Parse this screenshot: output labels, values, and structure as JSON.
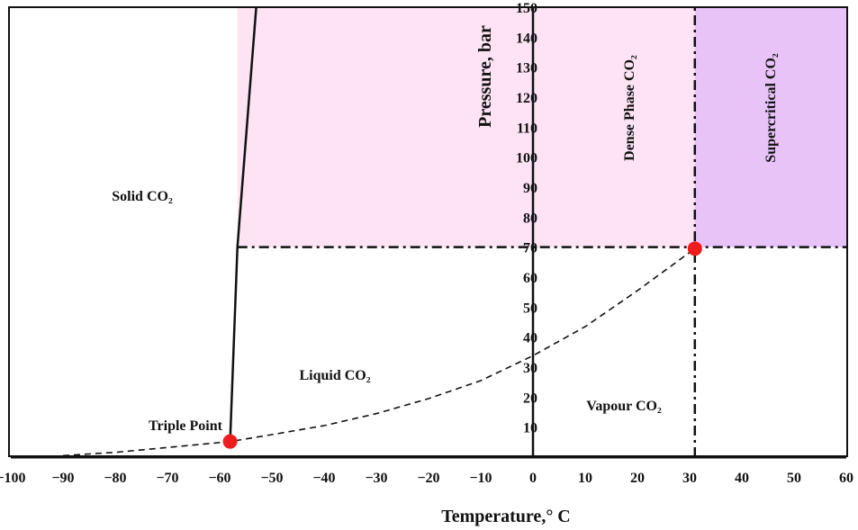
{
  "chart_data": {
    "type": "line",
    "title": "",
    "xlabel": "Temperature,° C",
    "ylabel": "Pressure, bar",
    "xlim": [
      -100,
      60
    ],
    "ylim": [
      0,
      150
    ],
    "x_ticks": [
      -100,
      -90,
      -80,
      -70,
      -60,
      -50,
      -40,
      -30,
      -20,
      -10,
      0,
      10,
      20,
      30,
      40,
      50,
      60
    ],
    "x_tick_labels": [
      "−100",
      "−90",
      "−80",
      "−70",
      "−60",
      "−50",
      "−40",
      "−30",
      "−20",
      "−10",
      "0",
      "10",
      "20",
      "30",
      "40",
      "50",
      "60"
    ],
    "y_ticks": [
      10,
      20,
      30,
      40,
      50,
      60,
      70,
      80,
      90,
      100,
      110,
      120,
      130,
      140,
      150
    ],
    "grid": false,
    "series": [
      {
        "style": "solid",
        "x": [
          -58,
          -56.6,
          -53
        ],
        "y": [
          5.2,
          70,
          150
        ]
      },
      {
        "style": "dashed",
        "x": [
          -90,
          -80,
          -70,
          -58,
          -50,
          -40,
          -30,
          -20,
          -10,
          0,
          10,
          20,
          31
        ],
        "y": [
          0.5,
          1.6,
          3.2,
          5.2,
          7.5,
          10.5,
          14.5,
          19.5,
          25.5,
          33.8,
          43.5,
          55.5,
          69.5
        ]
      }
    ],
    "reference_lines": [
      {
        "style": "dashdot",
        "axis": "y",
        "value": 70,
        "x_from": -56.6,
        "x_to": 60
      },
      {
        "style": "dashdot",
        "axis": "x",
        "value": 31,
        "y_from": 0,
        "y_to": 150
      },
      {
        "style": "solid",
        "axis": "x",
        "value": 0,
        "y_from": 0,
        "y_to": 150
      }
    ],
    "shaded_regions": [
      {
        "color": "#fde3f4",
        "x_from": -56.6,
        "x_to": 31,
        "y_from": 70,
        "y_to": 150
      },
      {
        "color": "#e8c3f8",
        "x_from": 31,
        "x_to": 60,
        "y_from": 70,
        "y_to": 150
      }
    ],
    "points": [
      {
        "x": -58,
        "y": 5.2,
        "label": "Triple Point",
        "color": "#ee1c1c"
      },
      {
        "x": 31,
        "y": 69.5,
        "color": "#ee1c1c"
      }
    ],
    "regions": [
      {
        "label": "Solid CO₂"
      },
      {
        "label": "Liquid CO₂"
      },
      {
        "label": "Vapour CO₂"
      },
      {
        "label": "Dense Phase CO₂"
      },
      {
        "label": "Supercritical CO₂"
      }
    ]
  }
}
